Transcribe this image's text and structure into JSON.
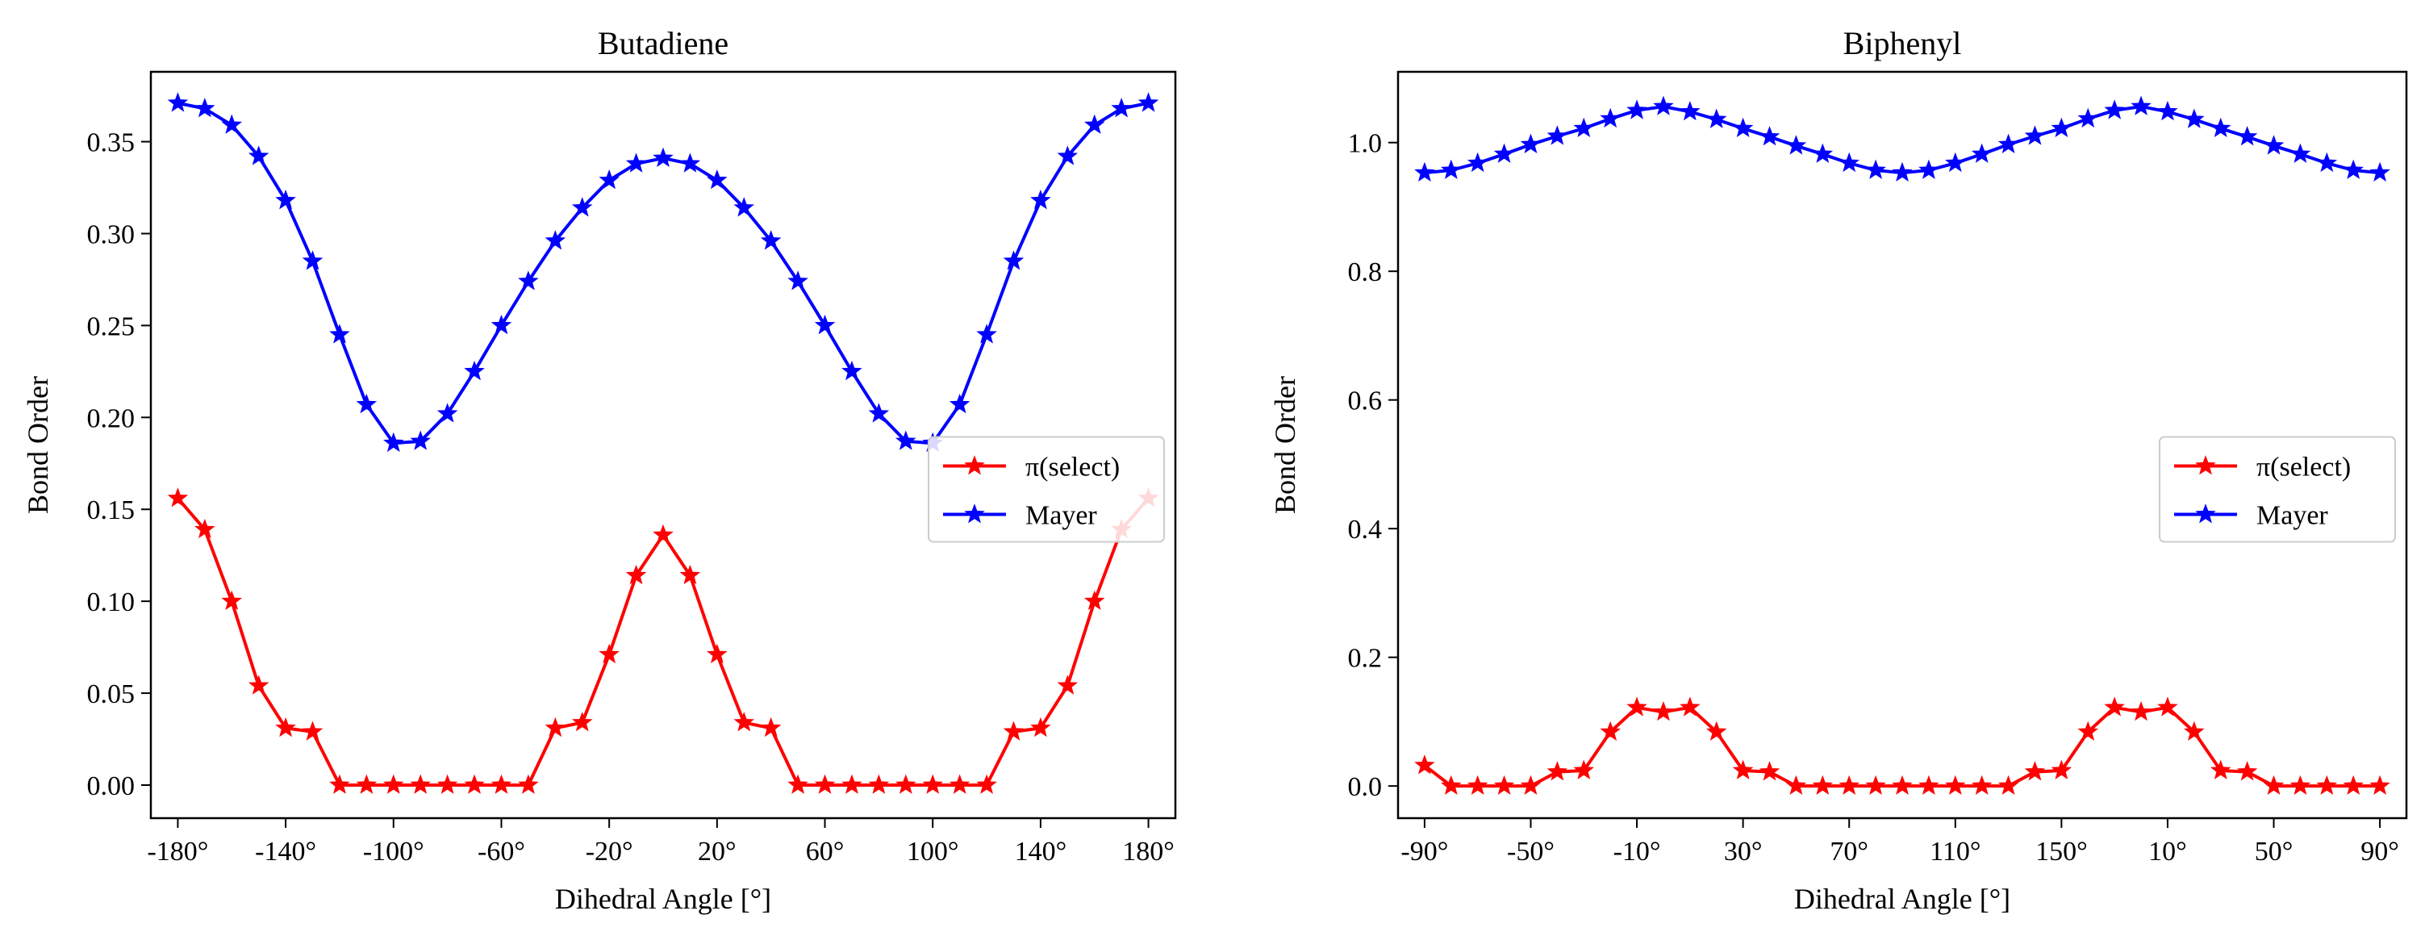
{
  "chart_data": [
    {
      "type": "line",
      "title": "Butadiene",
      "xlabel": "Dihedral Angle [°]",
      "ylabel": "Bond Order",
      "x": [
        -180,
        -170,
        -160,
        -150,
        -140,
        -130,
        -120,
        -110,
        -100,
        -90,
        -80,
        -70,
        -60,
        -50,
        -40,
        -30,
        -20,
        -10,
        0,
        10,
        20,
        30,
        40,
        50,
        60,
        70,
        80,
        90,
        100,
        110,
        120,
        130,
        140,
        150,
        160,
        170,
        180
      ],
      "xtick_labels": [
        "-180°",
        "-140°",
        "-100°",
        "-60°",
        "-20°",
        "20°",
        "60°",
        "100°",
        "140°",
        "180°"
      ],
      "ytick_labels": [
        "0.00",
        "0.05",
        "0.10",
        "0.15",
        "0.20",
        "0.25",
        "0.30",
        "0.35"
      ],
      "ylim": [
        -0.018,
        0.388
      ],
      "xlim": [
        -190,
        190
      ],
      "legend": "center-right",
      "series": [
        {
          "name": "π(select)",
          "color": "#ff0000",
          "values": [
            0.156,
            0.139,
            0.1,
            0.054,
            0.031,
            0.029,
            0.0,
            0.0,
            0.0,
            0.0,
            0.0,
            0.0,
            0.0,
            0.0,
            0.031,
            0.034,
            0.071,
            0.114,
            0.136,
            0.114,
            0.071,
            0.034,
            0.031,
            0.0,
            0.0,
            0.0,
            0.0,
            0.0,
            0.0,
            0.0,
            0.0,
            0.029,
            0.031,
            0.054,
            0.1,
            0.139,
            0.156
          ]
        },
        {
          "name": "Mayer",
          "color": "#0000ff",
          "values": [
            0.371,
            0.368,
            0.359,
            0.342,
            0.318,
            0.285,
            0.245,
            0.207,
            0.186,
            0.187,
            0.202,
            0.225,
            0.25,
            0.274,
            0.296,
            0.314,
            0.329,
            0.338,
            0.341,
            0.338,
            0.329,
            0.314,
            0.296,
            0.274,
            0.25,
            0.225,
            0.202,
            0.187,
            0.186,
            0.207,
            0.245,
            0.285,
            0.318,
            0.342,
            0.359,
            0.368,
            0.371
          ]
        }
      ]
    },
    {
      "type": "line",
      "title": "Biphenyl",
      "xlabel": "Dihedral Angle [°]",
      "ylabel": "Bond Order",
      "x": [
        -90,
        -80,
        -70,
        -60,
        -50,
        -40,
        -30,
        -20,
        -10,
        0,
        10,
        20,
        30,
        40,
        50,
        60,
        70,
        80,
        90,
        100,
        110,
        120,
        130,
        140,
        150,
        160,
        170,
        180,
        190,
        200,
        210,
        220,
        230,
        240,
        250,
        260,
        270
      ],
      "xtick_labels": [
        "-90°",
        "-50°",
        "-10°",
        "30°",
        "70°",
        "110°",
        "150°",
        "10°",
        "50°",
        "90°"
      ],
      "ytick_labels": [
        "0.0",
        "0.2",
        "0.4",
        "0.6",
        "0.8",
        "1.0"
      ],
      "ylim": [
        -0.05,
        1.11
      ],
      "xlim": [
        -100,
        280
      ],
      "legend": "center-right",
      "series": [
        {
          "name": "π(select)",
          "color": "#ff0000",
          "values": [
            0.032,
            0.0,
            0.0,
            0.0,
            0.0,
            0.022,
            0.024,
            0.084,
            0.122,
            0.115,
            0.122,
            0.084,
            0.024,
            0.022,
            0.0,
            0.0,
            0.0,
            0.0,
            0.0,
            0.0,
            0.0,
            0.0,
            0.0,
            0.022,
            0.024,
            0.084,
            0.122,
            0.115,
            0.122,
            0.084,
            0.024,
            0.022,
            0.0,
            0.0,
            0.0,
            0.0,
            0.0
          ]
        },
        {
          "name": "Mayer",
          "color": "#0000ff",
          "values": [
            0.953,
            0.957,
            0.968,
            0.982,
            0.997,
            1.01,
            1.022,
            1.037,
            1.05,
            1.056,
            1.048,
            1.036,
            1.022,
            1.009,
            0.995,
            0.982,
            0.968,
            0.957,
            0.953,
            0.957,
            0.968,
            0.982,
            0.997,
            1.01,
            1.022,
            1.037,
            1.05,
            1.056,
            1.048,
            1.036,
            1.022,
            1.009,
            0.995,
            0.982,
            0.968,
            0.957,
            0.953
          ]
        }
      ]
    }
  ]
}
